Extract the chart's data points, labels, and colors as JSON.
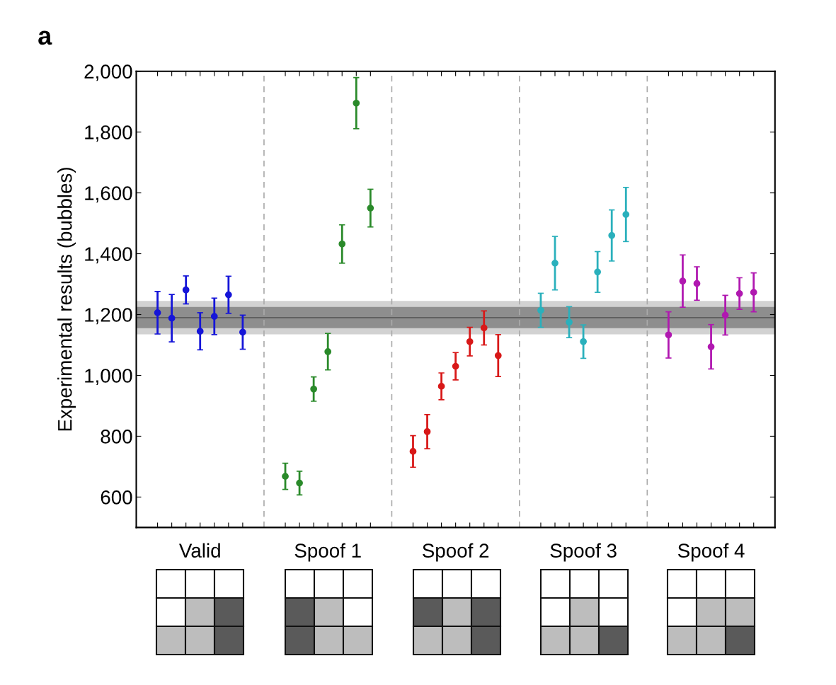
{
  "chart_data": {
    "type": "scatter",
    "title": "a",
    "ylabel": "Experimental results (bubbles)",
    "categories": [
      null,
      null,
      null,
      "Valid",
      null,
      null,
      null,
      null,
      null,
      null,
      null,
      null,
      "Spoof 1",
      null,
      null,
      null,
      null,
      null,
      null,
      null,
      null,
      "Spoof 2",
      null,
      null,
      null,
      null,
      null,
      null,
      null,
      null,
      "Spoof 3",
      null,
      null,
      null,
      null,
      null,
      null,
      null,
      null,
      "Spoof 4",
      null,
      null,
      null
    ],
    "ylim": [
      500,
      2000
    ],
    "yticks": [
      {
        "value": 600,
        "label": "600"
      },
      {
        "value": 800,
        "label": "800"
      },
      {
        "value": 1000,
        "label": "1,000"
      },
      {
        "value": 1200,
        "label": "1,200"
      },
      {
        "value": 1400,
        "label": "1,400"
      },
      {
        "value": 1600,
        "label": "1,600"
      },
      {
        "value": 1800,
        "label": "1,800"
      },
      {
        "value": 2000,
        "label": "2,000"
      }
    ],
    "grid": false,
    "legend": false,
    "marker": "circle",
    "bands": [
      {
        "axis": "y",
        "from": 1135,
        "to": 1245,
        "color": "#d2d2d2"
      },
      {
        "axis": "y",
        "from": 1155,
        "to": 1225,
        "color": "#8e8e8e"
      }
    ],
    "ref_lines": [
      {
        "axis": "y",
        "value": 1190,
        "color": "#5e5e5e",
        "line_style": "solid"
      }
    ],
    "series": [
      {
        "color": "#1515d8",
        "values": [
          1206,
          1188,
          1281,
          1145,
          1194,
          1265,
          1142,
          null,
          null,
          null,
          null,
          null,
          null,
          null,
          null,
          null,
          null,
          null,
          null,
          null,
          null,
          null,
          null,
          null,
          null,
          null,
          null,
          null,
          null,
          null,
          null,
          null,
          null,
          null,
          null,
          null,
          null,
          null,
          null,
          null,
          null,
          null,
          null
        ],
        "errors": [
          70,
          78,
          46,
          61,
          60,
          61,
          56,
          null,
          null,
          null,
          null,
          null,
          null,
          null,
          null,
          null,
          null,
          null,
          null,
          null,
          null,
          null,
          null,
          null,
          null,
          null,
          null,
          null,
          null,
          null,
          null,
          null,
          null,
          null,
          null,
          null,
          null,
          null,
          null,
          null,
          null,
          null,
          null
        ]
      },
      {
        "color": "#2a8a2a",
        "values": [
          null,
          null,
          null,
          null,
          null,
          null,
          null,
          null,
          null,
          668,
          646,
          955,
          1078,
          1432,
          1895,
          1550,
          null,
          null,
          null,
          null,
          null,
          null,
          null,
          null,
          null,
          null,
          null,
          null,
          null,
          null,
          null,
          null,
          null,
          null,
          null,
          null,
          null,
          null,
          null,
          null,
          null,
          null,
          null
        ],
        "errors": [
          null,
          null,
          null,
          null,
          null,
          null,
          null,
          null,
          null,
          43,
          39,
          40,
          60,
          63,
          84,
          62,
          null,
          null,
          null,
          null,
          null,
          null,
          null,
          null,
          null,
          null,
          null,
          null,
          null,
          null,
          null,
          null,
          null,
          null,
          null,
          null,
          null,
          null,
          null,
          null,
          null,
          null,
          null
        ]
      },
      {
        "color": "#d81818",
        "values": [
          null,
          null,
          null,
          null,
          null,
          null,
          null,
          null,
          null,
          null,
          null,
          null,
          null,
          null,
          null,
          null,
          null,
          null,
          750,
          815,
          964,
          1030,
          1111,
          1156,
          1065,
          null,
          null,
          null,
          null,
          null,
          null,
          null,
          null,
          null,
          null,
          null,
          null,
          null,
          null,
          null,
          null,
          null,
          null
        ],
        "errors": [
          null,
          null,
          null,
          null,
          null,
          null,
          null,
          null,
          null,
          null,
          null,
          null,
          null,
          null,
          null,
          null,
          null,
          null,
          52,
          56,
          44,
          45,
          47,
          56,
          69,
          null,
          null,
          null,
          null,
          null,
          null,
          null,
          null,
          null,
          null,
          null,
          null,
          null,
          null,
          null,
          null,
          null,
          null
        ]
      },
      {
        "color": "#2ab0bc",
        "values": [
          null,
          null,
          null,
          null,
          null,
          null,
          null,
          null,
          null,
          null,
          null,
          null,
          null,
          null,
          null,
          null,
          null,
          null,
          null,
          null,
          null,
          null,
          null,
          null,
          null,
          null,
          null,
          1214,
          1369,
          1175,
          1111,
          1340,
          1460,
          1529,
          null,
          null,
          null,
          null,
          null,
          null,
          null,
          null,
          null
        ],
        "errors": [
          null,
          null,
          null,
          null,
          null,
          null,
          null,
          null,
          null,
          null,
          null,
          null,
          null,
          null,
          null,
          null,
          null,
          null,
          null,
          null,
          null,
          null,
          null,
          null,
          null,
          null,
          null,
          56,
          88,
          51,
          55,
          67,
          84,
          89,
          null,
          null,
          null,
          null,
          null,
          null,
          null,
          null,
          null
        ]
      },
      {
        "color": "#b018b0",
        "values": [
          null,
          null,
          null,
          null,
          null,
          null,
          null,
          null,
          null,
          null,
          null,
          null,
          null,
          null,
          null,
          null,
          null,
          null,
          null,
          null,
          null,
          null,
          null,
          null,
          null,
          null,
          null,
          null,
          null,
          null,
          null,
          null,
          null,
          null,
          null,
          null,
          1133,
          1310,
          1302,
          1094,
          1198,
          1269,
          1273
        ],
        "errors": [
          null,
          null,
          null,
          null,
          null,
          null,
          null,
          null,
          null,
          null,
          null,
          null,
          null,
          null,
          null,
          null,
          null,
          null,
          null,
          null,
          null,
          null,
          null,
          null,
          null,
          null,
          null,
          null,
          null,
          null,
          null,
          null,
          null,
          null,
          null,
          null,
          76,
          86,
          55,
          73,
          65,
          52,
          64
        ]
      }
    ]
  }
}
